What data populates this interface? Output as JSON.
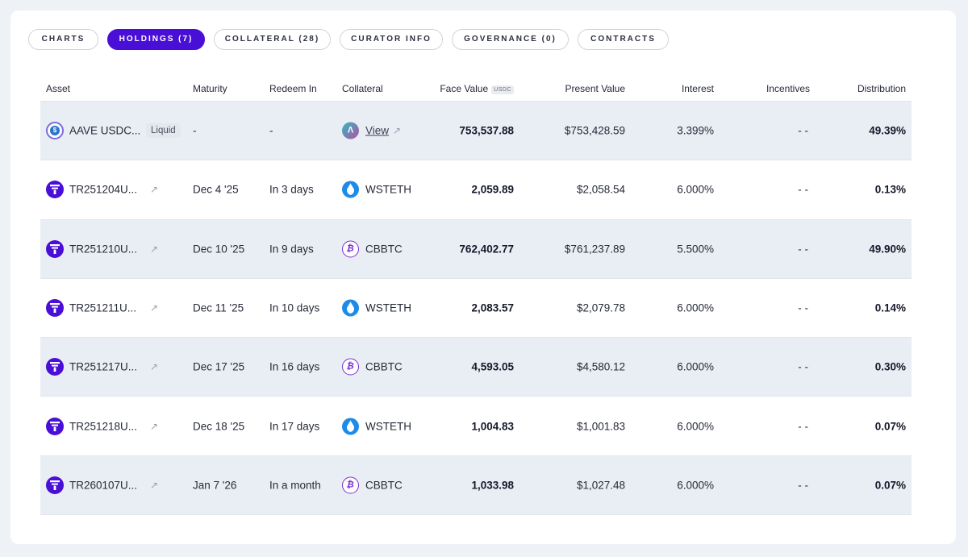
{
  "tabs": [
    {
      "label": "CHARTS",
      "active": false
    },
    {
      "label": "HOLDINGS (7)",
      "active": true
    },
    {
      "label": "COLLATERAL (28)",
      "active": false
    },
    {
      "label": "CURATOR INFO",
      "active": false
    },
    {
      "label": "GOVERNANCE (0)",
      "active": false
    },
    {
      "label": "CONTRACTS",
      "active": false
    }
  ],
  "table": {
    "headers": {
      "asset": "Asset",
      "maturity": "Maturity",
      "redeem_in": "Redeem In",
      "collateral": "Collateral",
      "face_value": "Face Value",
      "face_value_unit": "USDC",
      "present_value": "Present Value",
      "interest": "Interest",
      "incentives": "Incentives",
      "distribution": "Distribution"
    },
    "rows": [
      {
        "asset": "AAVE USDC...",
        "badge": "Liquid",
        "asset_icon": "aave-usdc-icon",
        "maturity": "-",
        "redeem_in": "-",
        "collateral": "View",
        "collateral_icon": "aave-icon",
        "face_value": "753,537.88",
        "present_value": "$753,428.59",
        "interest": "3.399%",
        "incentives": "- -",
        "distribution": "49.39%"
      },
      {
        "asset": "TR251204U...",
        "asset_icon": "term-icon",
        "maturity": "Dec 4 '25",
        "redeem_in": "In 3 days",
        "collateral": "WSTETH",
        "collateral_icon": "wsteth-icon",
        "face_value": "2,059.89",
        "present_value": "$2,058.54",
        "interest": "6.000%",
        "incentives": "- -",
        "distribution": "0.13%"
      },
      {
        "asset": "TR251210U...",
        "asset_icon": "term-icon",
        "maturity": "Dec 10 '25",
        "redeem_in": "In 9 days",
        "collateral": "CBBTC",
        "collateral_icon": "cbbtc-icon",
        "face_value": "762,402.77",
        "present_value": "$761,237.89",
        "interest": "5.500%",
        "incentives": "- -",
        "distribution": "49.90%"
      },
      {
        "asset": "TR251211U...",
        "asset_icon": "term-icon",
        "maturity": "Dec 11 '25",
        "redeem_in": "In 10 days",
        "collateral": "WSTETH",
        "collateral_icon": "wsteth-icon",
        "face_value": "2,083.57",
        "present_value": "$2,079.78",
        "interest": "6.000%",
        "incentives": "- -",
        "distribution": "0.14%"
      },
      {
        "asset": "TR251217U...",
        "asset_icon": "term-icon",
        "maturity": "Dec 17 '25",
        "redeem_in": "In 16 days",
        "collateral": "CBBTC",
        "collateral_icon": "cbbtc-icon",
        "face_value": "4,593.05",
        "present_value": "$4,580.12",
        "interest": "6.000%",
        "incentives": "- -",
        "distribution": "0.30%"
      },
      {
        "asset": "TR251218U...",
        "asset_icon": "term-icon",
        "maturity": "Dec 18 '25",
        "redeem_in": "In 17 days",
        "collateral": "WSTETH",
        "collateral_icon": "wsteth-icon",
        "face_value": "1,004.83",
        "present_value": "$1,001.83",
        "interest": "6.000%",
        "incentives": "- -",
        "distribution": "0.07%"
      },
      {
        "asset": "TR260107U...",
        "asset_icon": "term-icon",
        "maturity": "Jan 7 '26",
        "redeem_in": "In a month",
        "collateral": "CBBTC",
        "collateral_icon": "cbbtc-icon",
        "face_value": "1,033.98",
        "present_value": "$1,027.48",
        "interest": "6.000%",
        "incentives": "- -",
        "distribution": "0.07%"
      }
    ]
  },
  "colors": {
    "accent": "#4a0fd6",
    "row_shade": "#e9eef4",
    "wsteth": "#1c8bea",
    "cbbtc": "#7a2fd0"
  }
}
